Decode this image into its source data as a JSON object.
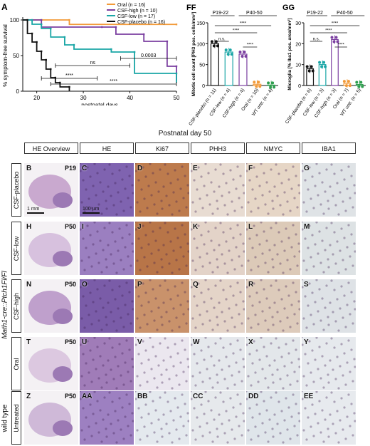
{
  "panel_a": {
    "letter": "A",
    "ylabel": "% symptom-free survival",
    "xlabel": "postnatal days",
    "legend": [
      "Oral (n = 16)",
      "CSF-high (n = 10)",
      "CSF-low (n = 17)",
      "CSF-placebo (n = 16)"
    ],
    "colors": {
      "Oral": "#f29a38",
      "CSF-high": "#7b3fa0",
      "CSF-low": "#1aa6a6",
      "CSF-placebo": "#111111"
    },
    "stats": [
      "0.0003",
      "ns",
      "****",
      "****"
    ]
  },
  "panel_ff": {
    "letter": "FF",
    "ylabel": "Mitotic cell count [PH3 pos. cells/mm²]",
    "bracket_left": "P19-22",
    "bracket_right": "P40-50",
    "stats": [
      "n.s.",
      "****",
      "****",
      "****"
    ]
  },
  "panel_gg": {
    "letter": "GG",
    "ylabel": "Microglia [% Iba1 pos. area/mm²]",
    "bracket_left": "P19-22",
    "bracket_right": "P40-50",
    "stats": [
      "n.s.",
      "****",
      "****",
      "****"
    ]
  },
  "chart_data": [
    {
      "type": "line",
      "title": "",
      "xlabel": "postnatal days",
      "ylabel": "% symptom-free survival",
      "xlim": [
        17,
        50
      ],
      "ylim": [
        0,
        100
      ],
      "xticks": [
        20,
        30,
        40,
        50
      ],
      "yticks": [
        0,
        50,
        100
      ],
      "series": [
        {
          "name": "Oral (n = 16)",
          "color": "#f29a38",
          "x": [
            17,
            27,
            50
          ],
          "y": [
            100,
            93.75,
            93.75
          ]
        },
        {
          "name": "CSF-high (n = 10)",
          "color": "#7b3fa0",
          "x": [
            17,
            21,
            34,
            37,
            43,
            48,
            50
          ],
          "y": [
            100,
            90,
            90,
            80,
            70,
            35,
            15
          ]
        },
        {
          "name": "CSF-low (n = 17)",
          "color": "#1aa6a6",
          "x": [
            17,
            19,
            21,
            23,
            26,
            28,
            36,
            41,
            50
          ],
          "y": [
            100,
            94,
            88,
            76,
            65,
            59,
            55,
            25,
            12
          ]
        },
        {
          "name": "CSF-placebo (n = 16)",
          "color": "#111111",
          "x": [
            17,
            18,
            19,
            20,
            21,
            22,
            23,
            24,
            25,
            27
          ],
          "y": [
            100,
            81,
            69,
            56,
            44,
            31,
            19,
            12,
            6,
            0
          ]
        }
      ]
    },
    {
      "type": "bar",
      "title": "",
      "ylabel": "Mitotic cell count [PH3 pos. cells/mm²]",
      "ylim": [
        0,
        150
      ],
      "yticks": [
        0,
        50,
        100,
        150
      ],
      "categories": [
        "CSF-placebo (n = 11)",
        "CSF-low (n = 4)",
        "CSF-high (n = 4)",
        "Oral (n = 10)",
        "WT untr. (n = 4)"
      ],
      "colors": [
        "#111111",
        "#1aa6a6",
        "#7b3fa0",
        "#f29a38",
        "#2e9e4f"
      ],
      "values": [
        100,
        80,
        75,
        3,
        1
      ]
    },
    {
      "type": "bar",
      "title": "",
      "ylabel": "Microglia [% Iba1 pos. area/mm²]",
      "ylim": [
        0,
        30
      ],
      "yticks": [
        0,
        10,
        20,
        30
      ],
      "categories": [
        "CSF-placebo (n = 6)",
        "CSF-low (n = 3)",
        "CSF-high (n = 3)",
        "Oral (n = 7)",
        "WT untr. (n = 5)"
      ],
      "colors": [
        "#111111",
        "#1aa6a6",
        "#7b3fa0",
        "#f29a38",
        "#2e9e4f"
      ],
      "values": [
        8,
        10,
        22,
        1,
        0.5
      ]
    }
  ],
  "grid": {
    "title": "Postnatal day 50",
    "columns": [
      "HE Overview",
      "HE",
      "Ki67",
      "PHH3",
      "NMYC",
      "IBA1"
    ],
    "genotype_label": "Math1-cre::Ptch1Fl/Fl",
    "wildtype_label": "wild type",
    "rows": [
      {
        "label": "CSF-placebo",
        "age": "P19",
        "letters": [
          "B",
          "C",
          "D",
          "E",
          "F",
          "G"
        ]
      },
      {
        "label": "CSF-low",
        "age": "P50",
        "letters": [
          "H",
          "I",
          "J",
          "K",
          "L",
          "M"
        ]
      },
      {
        "label": "CSF-high",
        "age": "P50",
        "letters": [
          "N",
          "O",
          "P",
          "Q",
          "R",
          "S"
        ]
      },
      {
        "label": "Oral",
        "age": "P50",
        "letters": [
          "T",
          "U",
          "V",
          "W",
          "X",
          "Y"
        ]
      },
      {
        "label": "Untreated",
        "age": "P50",
        "letters": [
          "Z",
          "AA",
          "BB",
          "CC",
          "DD",
          "EE"
        ]
      }
    ],
    "scalebar_overview": "1 mm",
    "scalebar_he": "100 µm",
    "tile_colors": [
      [
        "#c9a9cf",
        "#7f63b0",
        "#bd7b4d",
        "#e8dcd2",
        "#e6d6c6",
        "#dfe3e6"
      ],
      [
        "#d7c1de",
        "#9b7fc0",
        "#b87548",
        "#e3d3c8",
        "#dccab8",
        "#dde2e4"
      ],
      [
        "#bfa0cc",
        "#7a5ca8",
        "#c9926b",
        "#e4d4c8",
        "#ddcbbb",
        "#dee2e6"
      ],
      [
        "#dcc8e0",
        "#a07cb8",
        "#ebe7ef",
        "#e5e8ec",
        "#e3e7ea",
        "#e6e9ed"
      ],
      [
        "#cfb9d8",
        "#9d80c1",
        "#e4e9ee",
        "#e6e9ec",
        "#dfe5ea",
        "#e7eaee"
      ]
    ]
  }
}
